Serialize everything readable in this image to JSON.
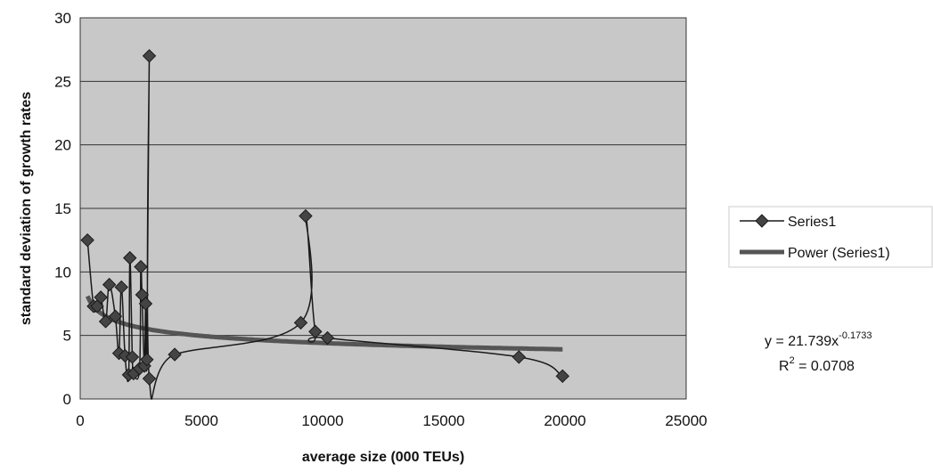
{
  "chart_data": {
    "type": "scatter",
    "xlabel": "average size (000 TEUs)",
    "ylabel": "standard deviation of growth rates",
    "xlim": [
      0,
      25000
    ],
    "ylim": [
      0,
      30
    ],
    "x_ticks": [
      "0",
      "5000",
      "10000",
      "15000",
      "20000",
      "25000"
    ],
    "y_ticks": [
      "0",
      "5",
      "10",
      "15",
      "20",
      "25",
      "30"
    ],
    "grid": "horizontal",
    "legend_position": "right",
    "colors": {
      "plot_background": "#c8c8c8",
      "series_line": "#1a1a1a",
      "marker": "#444444",
      "trend_line": "#555555"
    },
    "series": [
      {
        "name": "Series1",
        "style": "smoothed-line-with-diamond-markers",
        "x": [
          300,
          550,
          700,
          850,
          1050,
          1200,
          1450,
          1600,
          1700,
          1850,
          2000,
          2050,
          2150,
          2200,
          2450,
          2500,
          2550,
          2650,
          2700,
          2750,
          2850,
          2850,
          3900,
          9100,
          9300,
          9700,
          10200,
          18100,
          19900
        ],
        "y": [
          12.5,
          7.3,
          7.3,
          8.0,
          6.1,
          9.0,
          6.5,
          3.6,
          8.8,
          3.4,
          1.9,
          11.1,
          3.3,
          2.0,
          2.4,
          10.4,
          8.2,
          2.6,
          7.5,
          3.1,
          27.0,
          1.6,
          3.5,
          6.0,
          14.4,
          5.3,
          4.8,
          3.3,
          1.8
        ]
      },
      {
        "name": "Power (Series1)",
        "style": "trend-line",
        "equation_a": 21.739,
        "equation_b": -0.1733
      }
    ],
    "annotations": {
      "equation_prefix": "y = 21.739x",
      "equation_exponent": "-0.1733",
      "r2_prefix": "R",
      "r2_exponent": "2",
      "r2_value": " = 0.0708"
    }
  }
}
